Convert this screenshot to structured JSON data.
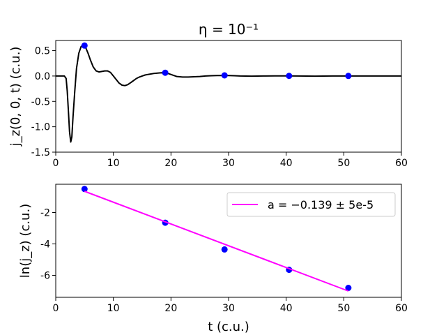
{
  "chart_data": [
    {
      "type": "line",
      "title": "η = 10⁻¹",
      "xlabel": "",
      "ylabel": "j_z(0, 0, t) (c.u.)",
      "xlim": [
        0,
        60
      ],
      "ylim": [
        -1.5,
        0.7
      ],
      "x_ticks": [
        "0",
        "10",
        "20",
        "30",
        "40",
        "50",
        "60"
      ],
      "y_ticks": [
        "0.5",
        "0.0",
        "-0.5",
        "-1.0",
        "-1.5"
      ],
      "x_tick_values": [
        0,
        10,
        20,
        30,
        40,
        50,
        60
      ],
      "y_tick_values": [
        0.5,
        0.0,
        -0.5,
        -1.0,
        -1.5
      ],
      "grid": false,
      "series": [
        {
          "style": "line",
          "color": "#000000",
          "x": [
            0,
            1,
            1.5,
            1.8,
            2.0,
            2.2,
            2.4,
            2.6,
            2.8,
            3.0,
            3.3,
            3.6,
            4.0,
            4.4,
            4.8,
            5.0,
            5.2,
            5.6,
            6.0,
            6.5,
            7.0,
            7.5,
            8.0,
            8.5,
            9.0,
            9.5,
            10.0,
            10.5,
            11.0,
            11.5,
            12.0,
            12.5,
            13.0,
            13.5,
            14.0,
            14.5,
            15.0,
            15.5,
            16.0,
            16.5,
            17.0,
            17.5,
            18.0,
            18.5,
            19.0,
            19.5,
            20.0,
            20.5,
            21.0,
            22.0,
            23.0,
            24.0,
            25.0,
            26.0,
            27.0,
            28.0,
            29.0,
            30.0,
            31.0,
            32.0,
            34.0,
            36.0,
            38.0,
            40.0,
            42.0,
            45.0,
            48.0,
            50.0,
            52.0,
            55.0,
            60.0
          ],
          "y": [
            0.0,
            0.0,
            0.0,
            -0.05,
            -0.3,
            -0.7,
            -1.1,
            -1.3,
            -1.2,
            -0.8,
            -0.3,
            0.15,
            0.45,
            0.58,
            0.61,
            0.6,
            0.56,
            0.45,
            0.32,
            0.18,
            0.1,
            0.08,
            0.09,
            0.1,
            0.1,
            0.07,
            0.0,
            -0.07,
            -0.14,
            -0.18,
            -0.19,
            -0.17,
            -0.13,
            -0.09,
            -0.05,
            -0.02,
            0.0,
            0.02,
            0.03,
            0.04,
            0.05,
            0.055,
            0.06,
            0.065,
            0.06,
            0.05,
            0.03,
            0.01,
            -0.01,
            -0.02,
            -0.02,
            -0.015,
            -0.01,
            0.0,
            0.005,
            0.01,
            0.01,
            0.008,
            0.005,
            0.0,
            -0.003,
            0.0,
            0.002,
            0.003,
            0.0,
            -0.002,
            0.0,
            0.0,
            0.0,
            0.0,
            0.0
          ]
        },
        {
          "style": "scatter",
          "color": "#0000ff",
          "x": [
            5.0,
            19.0,
            29.3,
            40.5,
            50.8
          ],
          "y": [
            0.6,
            0.065,
            0.012,
            0.0035,
            0.0011
          ]
        }
      ]
    },
    {
      "type": "scatter",
      "title": "",
      "xlabel": "t (c.u.)",
      "ylabel": "ln(j_z) (c.u.)",
      "xlim": [
        0,
        60
      ],
      "ylim": [
        -7.4,
        -0.2
      ],
      "x_ticks": [
        "0",
        "10",
        "20",
        "30",
        "40",
        "50",
        "60"
      ],
      "y_ticks": [
        "-2",
        "-4",
        "-6"
      ],
      "x_tick_values": [
        0,
        10,
        20,
        30,
        40,
        50,
        60
      ],
      "y_tick_values": [
        -2,
        -4,
        -6
      ],
      "grid": false,
      "legend_position": "top-right",
      "series": [
        {
          "style": "scatter",
          "color": "#0000ff",
          "x": [
            5.0,
            19.0,
            29.3,
            40.5,
            50.8
          ],
          "y": [
            -0.5,
            -2.65,
            -4.35,
            -5.65,
            -6.8
          ]
        },
        {
          "style": "line",
          "color": "#ff00ff",
          "name": "a = −0.139 ± 5e-5",
          "x": [
            5.0,
            50.8
          ],
          "y": [
            -0.65,
            -7.0
          ]
        }
      ]
    }
  ]
}
